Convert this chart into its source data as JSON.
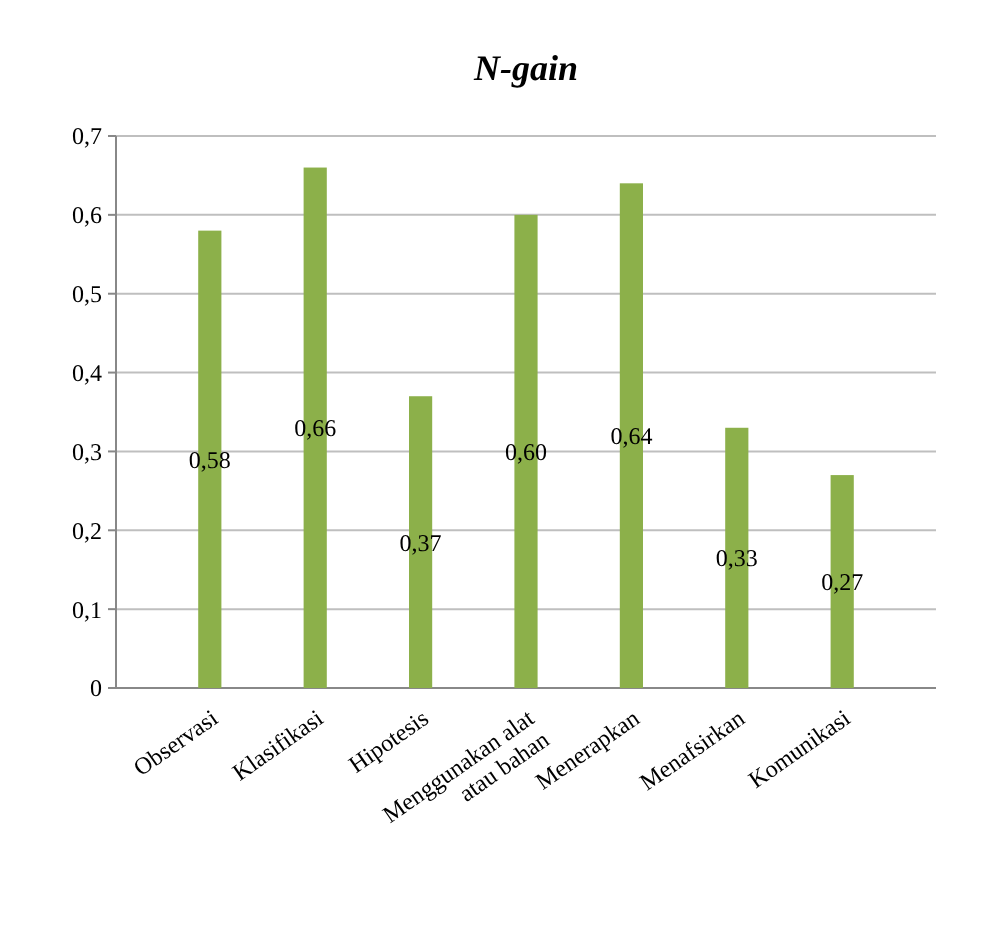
{
  "chart_data": {
    "type": "bar",
    "title": "N-gain",
    "categories": [
      "Observasi",
      "Klasifikasi",
      "Hipotesis",
      "Menggunakan alat atau bahan",
      "Menerapkan",
      "Menafsirkan",
      "Komunikasi"
    ],
    "values": [
      0.58,
      0.66,
      0.37,
      0.6,
      0.64,
      0.33,
      0.27
    ],
    "value_labels": [
      "0,58",
      "0,66",
      "0,37",
      "0,60",
      "0,64",
      "0,33",
      "0,27"
    ],
    "color": "#8cb04a",
    "ylim": [
      0,
      0.7
    ],
    "yticks": [
      {
        "value": 0,
        "label": "0"
      },
      {
        "value": 0.1,
        "label": "0,1"
      },
      {
        "value": 0.2,
        "label": "0,2"
      },
      {
        "value": 0.3,
        "label": "0,3"
      },
      {
        "value": 0.4,
        "label": "0,4"
      },
      {
        "value": 0.5,
        "label": "0,5"
      },
      {
        "value": 0.6,
        "label": "0,6"
      },
      {
        "value": 0.7,
        "label": "0,7"
      }
    ],
    "grid": "y"
  }
}
